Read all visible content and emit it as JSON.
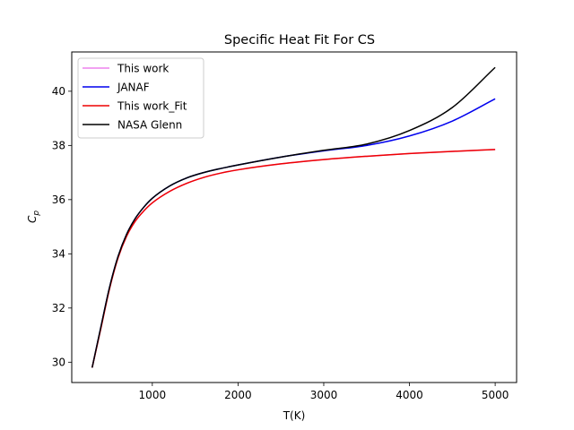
{
  "chart_data": {
    "type": "line",
    "title": "Specific Heat Fit For CS",
    "xlabel": "T(K)",
    "ylabel": "C",
    "ylabel_subscript": "p",
    "xlim": [
      60,
      5250
    ],
    "ylim": [
      29.25,
      41.45
    ],
    "xticks": [
      1000,
      2000,
      3000,
      4000,
      5000
    ],
    "yticks": [
      30,
      32,
      34,
      36,
      38,
      40
    ],
    "grid": false,
    "legend_position": "top-left",
    "series": [
      {
        "name": "This work",
        "color": "#ee82ee",
        "x": [
          298,
          400,
          500,
          600,
          700,
          800,
          900,
          1000,
          1200,
          1400,
          1600,
          1800,
          2000,
          2500,
          3000,
          3500,
          4000,
          4500,
          5000
        ],
        "y": [
          29.8,
          31.25,
          32.7,
          33.85,
          34.65,
          35.2,
          35.58,
          35.88,
          36.3,
          36.6,
          36.82,
          36.98,
          37.1,
          37.32,
          37.48,
          37.6,
          37.7,
          37.78,
          37.85
        ]
      },
      {
        "name": "JANAF",
        "color": "#0000ee",
        "x": [
          298,
          400,
          500,
          600,
          700,
          800,
          900,
          1000,
          1200,
          1400,
          1600,
          1800,
          2000,
          2500,
          3000,
          3500,
          4000,
          4500,
          5000
        ],
        "y": [
          29.8,
          31.3,
          32.75,
          33.9,
          34.72,
          35.3,
          35.72,
          36.05,
          36.5,
          36.8,
          37.0,
          37.15,
          37.28,
          37.57,
          37.8,
          38.0,
          38.35,
          38.9,
          39.72
        ]
      },
      {
        "name": "This work_Fit",
        "color": "#ee0000",
        "x": [
          298,
          400,
          500,
          600,
          700,
          800,
          900,
          1000,
          1200,
          1400,
          1600,
          1800,
          2000,
          2500,
          3000,
          3500,
          4000,
          4500,
          5000
        ],
        "y": [
          29.8,
          31.25,
          32.7,
          33.85,
          34.65,
          35.2,
          35.58,
          35.88,
          36.3,
          36.6,
          36.82,
          36.98,
          37.1,
          37.32,
          37.48,
          37.6,
          37.7,
          37.78,
          37.85
        ]
      },
      {
        "name": "NASA Glenn",
        "color": "#000000",
        "x": [
          298,
          400,
          500,
          600,
          700,
          800,
          900,
          1000,
          1200,
          1400,
          1600,
          1800,
          2000,
          2500,
          3000,
          3500,
          4000,
          4500,
          5000
        ],
        "y": [
          29.8,
          31.3,
          32.75,
          33.9,
          34.72,
          35.3,
          35.72,
          36.05,
          36.5,
          36.8,
          37.0,
          37.15,
          37.28,
          37.57,
          37.82,
          38.05,
          38.55,
          39.4,
          40.88
        ]
      }
    ]
  }
}
